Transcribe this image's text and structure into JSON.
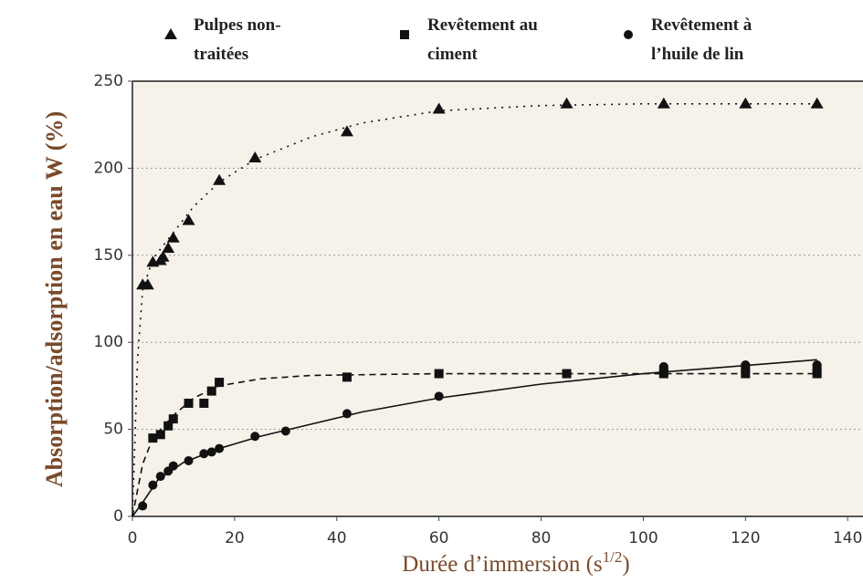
{
  "chart_data": {
    "type": "scatter",
    "xlabel": [
      "Durée d’immersion (s",
      "1/2",
      ")"
    ],
    "ylabel": "Absorption/adsorption en eau W (%)",
    "xlim": [
      0,
      143
    ],
    "xticks": [
      0,
      20,
      40,
      60,
      80,
      100,
      120,
      140
    ],
    "ylim": [
      0,
      250
    ],
    "yticks": [
      0,
      50,
      100,
      150,
      200,
      250
    ],
    "grid": true,
    "series": [
      {
        "name": "Pulpes non-traitées",
        "marker": "triangle",
        "color": "#111",
        "dash": "2 6",
        "x": [
          2,
          3,
          4,
          5.5,
          6,
          7,
          8,
          11,
          17,
          24,
          42,
          60,
          85,
          104,
          120,
          134
        ],
        "values": [
          133,
          133,
          146,
          147,
          149,
          154,
          160,
          170,
          193,
          206,
          221,
          234,
          237,
          237,
          237,
          237
        ],
        "fit": {
          "x": [
            0,
            1,
            2,
            4,
            8,
            12,
            17,
            24,
            35,
            45,
            60,
            80,
            100,
            134
          ],
          "values": [
            0,
            90,
            130,
            148,
            163,
            178,
            192,
            205,
            218,
            226,
            233,
            236,
            237,
            237
          ]
        }
      },
      {
        "name": "Revêtement au ciment",
        "marker": "square",
        "color": "#111",
        "dash": "7 5",
        "x": [
          4,
          5.5,
          7,
          8,
          11,
          14,
          15.5,
          17,
          42,
          60,
          85,
          104,
          104,
          120,
          120,
          134,
          134
        ],
        "values": [
          45,
          47,
          52,
          56,
          65,
          65,
          72,
          77,
          80,
          82,
          82,
          82,
          84,
          82,
          85,
          82,
          85
        ],
        "fit": {
          "x": [
            0,
            2,
            4,
            8,
            12,
            17,
            25,
            35,
            60,
            100,
            134
          ],
          "values": [
            0,
            30,
            45,
            58,
            68,
            75,
            79,
            81,
            82,
            82,
            82
          ]
        }
      },
      {
        "name": "Revêtement à l’huile de lin",
        "marker": "circle",
        "color": "#111",
        "dash": "none",
        "x": [
          2,
          4,
          5.5,
          7,
          8,
          11,
          14,
          15.5,
          17,
          24,
          30,
          42,
          60,
          104,
          120,
          134
        ],
        "values": [
          6,
          18,
          23,
          26,
          29,
          32,
          36,
          37,
          39,
          46,
          49,
          59,
          69,
          86,
          87,
          87
        ],
        "fit": {
          "x": [
            0,
            2,
            5,
            10,
            17,
            25,
            35,
            45,
            60,
            80,
            100,
            134
          ],
          "values": [
            0,
            8,
            21,
            31,
            39,
            46,
            53,
            60,
            68,
            76,
            82,
            90
          ]
        }
      }
    ]
  }
}
